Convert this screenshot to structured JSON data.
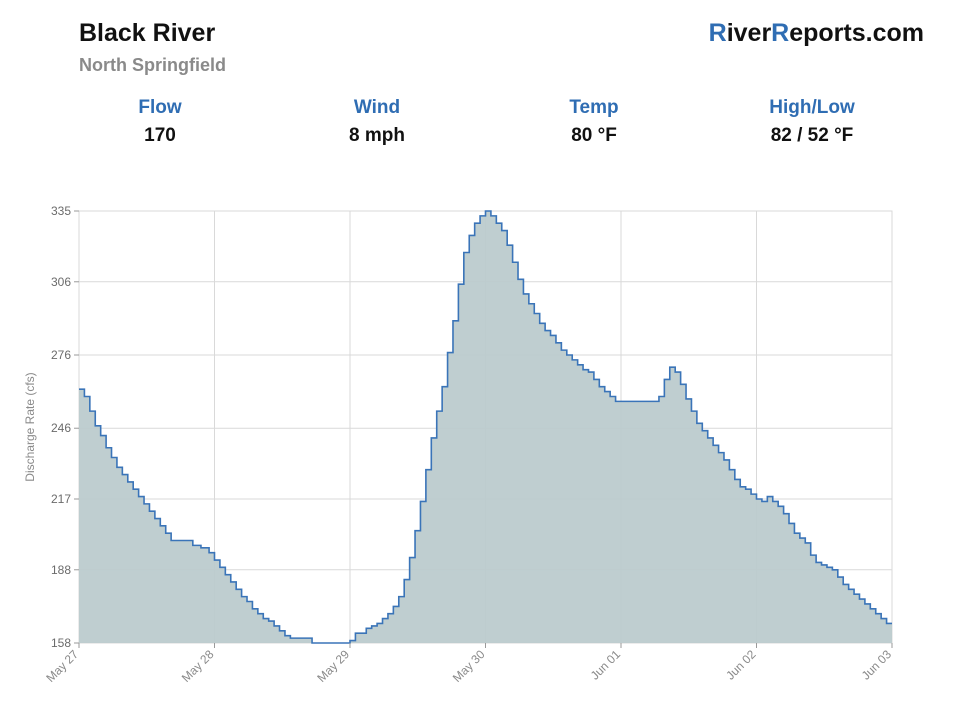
{
  "header": {
    "river_name": "Black River",
    "location": "North Springfield",
    "brand_part1": "R",
    "brand_part2": "iver",
    "brand_part3": "R",
    "brand_part4": "eports.com"
  },
  "stats": [
    {
      "label": "Flow",
      "value": "170"
    },
    {
      "label": "Wind",
      "value": "8 mph"
    },
    {
      "label": "Temp",
      "value": "80 °F"
    },
    {
      "label": "High/Low",
      "value": "82 / 52 °F"
    }
  ],
  "colors": {
    "accent": "#2f6db3",
    "line": "#3a74b8",
    "fill": "#bccbcd",
    "grid": "#d9d9d9"
  },
  "chart_data": {
    "type": "area",
    "step": true,
    "title": "",
    "xlabel": "",
    "ylabel": "Discharge Rate (cfs)",
    "ylim": [
      158,
      335
    ],
    "yticks": [
      158,
      188,
      217,
      246,
      276,
      306,
      335
    ],
    "xlim": [
      0,
      7
    ],
    "xticks": [
      {
        "value": 0,
        "label": "May 27"
      },
      {
        "value": 1,
        "label": "May 28"
      },
      {
        "value": 2,
        "label": "May 29"
      },
      {
        "value": 3,
        "label": "May 30"
      },
      {
        "value": 4,
        "label": "Jun 01"
      },
      {
        "value": 5,
        "label": "Jun 02"
      },
      {
        "value": 6,
        "label": "Jun 03"
      }
    ],
    "grid": true,
    "series": [
      {
        "x": [
          0,
          0.04,
          0.08,
          0.12,
          0.16,
          0.2,
          0.24,
          0.28,
          0.32,
          0.36,
          0.4,
          0.44,
          0.48,
          0.52,
          0.56,
          0.6,
          0.64,
          0.68,
          0.72,
          0.8,
          0.84,
          0.9,
          0.96,
          1.0,
          1.04,
          1.08,
          1.12,
          1.16,
          1.2,
          1.24,
          1.28,
          1.32,
          1.36,
          1.4,
          1.44,
          1.48,
          1.52,
          1.56,
          1.6,
          1.64,
          1.68,
          1.72,
          1.76,
          1.8,
          1.84,
          1.88,
          2.0,
          2.04,
          2.08,
          2.12,
          2.16,
          2.2,
          2.24,
          2.28,
          2.32,
          2.36,
          2.4,
          2.44,
          2.48,
          2.52,
          2.56,
          2.6,
          2.64,
          2.68,
          2.72,
          2.76,
          2.8,
          2.84,
          2.88,
          2.92,
          2.96,
          3.0,
          3.04,
          3.08,
          3.12,
          3.16,
          3.2,
          3.24,
          3.28,
          3.32,
          3.36,
          3.4,
          3.44,
          3.48,
          3.52,
          3.56,
          3.6,
          3.64,
          3.68,
          3.72,
          3.76,
          3.8,
          3.84,
          3.88,
          3.92,
          3.96,
          4.0,
          4.04,
          4.08,
          4.12,
          4.16,
          4.2,
          4.24,
          4.28,
          4.32,
          4.36,
          4.4,
          4.44,
          4.48,
          4.52,
          4.56,
          4.6,
          4.64,
          4.68,
          4.72,
          4.76,
          4.8,
          4.84,
          4.88,
          4.92,
          4.96,
          5.0,
          5.04,
          5.08,
          5.12,
          5.16,
          5.2,
          5.24,
          5.28,
          5.32,
          5.36,
          5.4,
          5.44,
          5.48,
          5.52,
          5.56,
          5.6,
          5.64,
          5.68,
          5.72,
          5.76,
          5.8,
          5.84,
          5.88,
          5.92,
          5.96
        ],
        "y": [
          262,
          259,
          253,
          247,
          243,
          238,
          234,
          230,
          227,
          224,
          221,
          218,
          215,
          212,
          209,
          206,
          203,
          200,
          200,
          200,
          198,
          197,
          195,
          192,
          189,
          186,
          183,
          180,
          177,
          175,
          172,
          170,
          168,
          167,
          165,
          163,
          161,
          160,
          160,
          160,
          160,
          158,
          158,
          158,
          158,
          158,
          159,
          162,
          162,
          164,
          165,
          166,
          168,
          170,
          173,
          177,
          184,
          193,
          204,
          216,
          229,
          242,
          253,
          263,
          277,
          290,
          305,
          318,
          325,
          330,
          333,
          335,
          333,
          330,
          327,
          321,
          314,
          307,
          301,
          297,
          293,
          289,
          286,
          284,
          281,
          278,
          276,
          274,
          272,
          270,
          269,
          266,
          263,
          261,
          259,
          257,
          257,
          257,
          257,
          257,
          257,
          257,
          257,
          259,
          266,
          271,
          269,
          264,
          258,
          253,
          248,
          245,
          242,
          239,
          236,
          233,
          229,
          225,
          222,
          221,
          219,
          217,
          216,
          218,
          216,
          214,
          211,
          207,
          203,
          201,
          199,
          194,
          191,
          190,
          189,
          188,
          185,
          182,
          180,
          178,
          176,
          174,
          172,
          170,
          168,
          166
        ]
      }
    ]
  }
}
